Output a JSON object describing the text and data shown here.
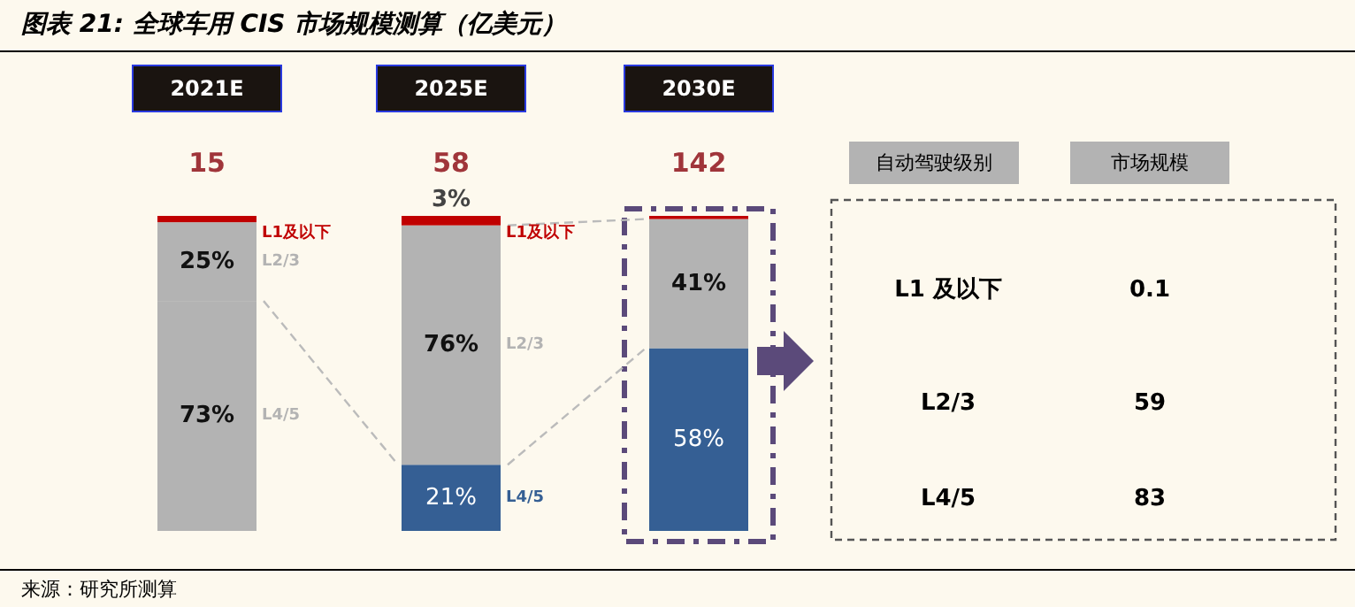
{
  "chart_data": [
    {
      "type": "bar",
      "title": "图表 21: 全球车用 CIS 市场规模测算（亿美元）",
      "categories": [
        "2021E",
        "2025E",
        "2030E"
      ],
      "stacked": true,
      "series": [
        {
          "name": "L4/5",
          "colors": [
            "#b3b3b3",
            "#355f94",
            "#355f94"
          ],
          "values": [
            73,
            21,
            58
          ],
          "value_labels": [
            "73%",
            "21%",
            "58%"
          ]
        },
        {
          "name": "L2/3",
          "colors": [
            "#b3b3b3",
            "#b3b3b3",
            "#b3b3b3"
          ],
          "values": [
            25,
            76,
            41
          ],
          "value_labels": [
            "25%",
            "76%",
            "41%"
          ]
        },
        {
          "name": "L1及以下",
          "colors": [
            "#c00000",
            "#c00000",
            "#c00000"
          ],
          "values": [
            2,
            3,
            1
          ],
          "value_labels": [
            null,
            "3%",
            null
          ]
        }
      ],
      "annotations": [
        "15",
        "58",
        "142",
        "来源：研究所测算"
      ]
    },
    {
      "type": "other",
      "categories": [
        "L1 及以下",
        "L2/3",
        "L4/5"
      ],
      "values": [
        0.1,
        59,
        83
      ],
      "data_labels": true,
      "annotations": [
        "自动驾驶级别",
        "市场规模"
      ]
    }
  ]
}
